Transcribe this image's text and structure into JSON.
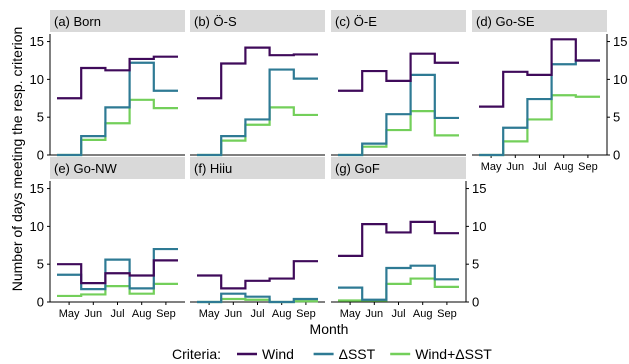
{
  "figure": {
    "ylabel": "Number of days meeting the resp. criterion",
    "xlabel": "Month",
    "legend_title": "Criteria:"
  },
  "colors": {
    "strip_bg": "#d9d9d9",
    "axis": "#000000",
    "text": "#000000"
  },
  "chart_data": {
    "type": "line",
    "step": "stairs",
    "months": [
      "May",
      "Jun",
      "Jul",
      "Aug",
      "Sep"
    ],
    "ylim": [
      0,
      16
    ],
    "yticks": [
      0,
      5,
      10,
      15
    ],
    "grid": false,
    "legend_placement": "bottom",
    "series_meta": [
      {
        "name": "Wind",
        "color": "#3f0a5a"
      },
      {
        "name": "ΔSST",
        "color": "#2e7a94"
      },
      {
        "name": "Wind+ΔSST",
        "color": "#73cf5a"
      }
    ],
    "panels": [
      {
        "title": "(a) Born",
        "series": [
          {
            "name": "Wind",
            "values": [
              7.5,
              11.5,
              11.2,
              12.7,
              13.0
            ]
          },
          {
            "name": "ΔSST",
            "values": [
              0.0,
              2.5,
              6.3,
              12.2,
              8.5
            ]
          },
          {
            "name": "Wind+ΔSST",
            "values": [
              0.0,
              2.0,
              4.2,
              7.3,
              6.2
            ]
          }
        ]
      },
      {
        "title": "(b) Ö-S",
        "series": [
          {
            "name": "Wind",
            "values": [
              7.5,
              12.1,
              14.2,
              13.2,
              13.3
            ]
          },
          {
            "name": "ΔSST",
            "values": [
              0.0,
              2.5,
              4.7,
              11.3,
              10.1
            ]
          },
          {
            "name": "Wind+ΔSST",
            "values": [
              0.0,
              1.9,
              4.0,
              6.3,
              5.3
            ]
          }
        ]
      },
      {
        "title": "(c) Ö-E",
        "series": [
          {
            "name": "Wind",
            "values": [
              8.5,
              11.1,
              9.8,
              13.4,
              12.2
            ]
          },
          {
            "name": "ΔSST",
            "values": [
              0.0,
              1.5,
              5.4,
              10.6,
              4.9
            ]
          },
          {
            "name": "Wind+ΔSST",
            "values": [
              0.0,
              1.1,
              3.3,
              5.8,
              2.6
            ]
          }
        ]
      },
      {
        "title": "(d) Go-SE",
        "series": [
          {
            "name": "Wind",
            "values": [
              6.4,
              11.0,
              10.6,
              15.3,
              12.5
            ]
          },
          {
            "name": "ΔSST",
            "values": [
              0.0,
              3.6,
              7.4,
              12.0,
              12.5
            ]
          },
          {
            "name": "Wind+ΔSST",
            "values": [
              0.0,
              1.8,
              4.7,
              7.9,
              7.7
            ]
          }
        ]
      },
      {
        "title": "(e) Go-NW",
        "series": [
          {
            "name": "Wind",
            "values": [
              5.0,
              2.5,
              3.8,
              3.5,
              5.5
            ]
          },
          {
            "name": "ΔSST",
            "values": [
              3.6,
              1.7,
              5.6,
              1.8,
              7.0
            ]
          },
          {
            "name": "Wind+ΔSST",
            "values": [
              0.8,
              1.0,
              2.1,
              1.1,
              2.4
            ]
          }
        ]
      },
      {
        "title": "(f) Hiiu",
        "series": [
          {
            "name": "Wind",
            "values": [
              3.5,
              1.8,
              2.8,
              3.1,
              5.4
            ]
          },
          {
            "name": "ΔSST",
            "values": [
              0.0,
              1.1,
              0.7,
              0.0,
              0.4
            ]
          },
          {
            "name": "Wind+ΔSST",
            "values": [
              0.0,
              0.4,
              0.3,
              0.0,
              0.1
            ]
          }
        ]
      },
      {
        "title": "(g) GoF",
        "series": [
          {
            "name": "Wind",
            "values": [
              6.1,
              10.3,
              9.2,
              10.6,
              9.1
            ]
          },
          {
            "name": "ΔSST",
            "values": [
              1.9,
              0.3,
              4.5,
              4.8,
              3.0
            ]
          },
          {
            "name": "Wind+ΔSST",
            "values": [
              0.2,
              0.2,
              2.4,
              3.1,
              2.0
            ]
          }
        ]
      }
    ]
  }
}
